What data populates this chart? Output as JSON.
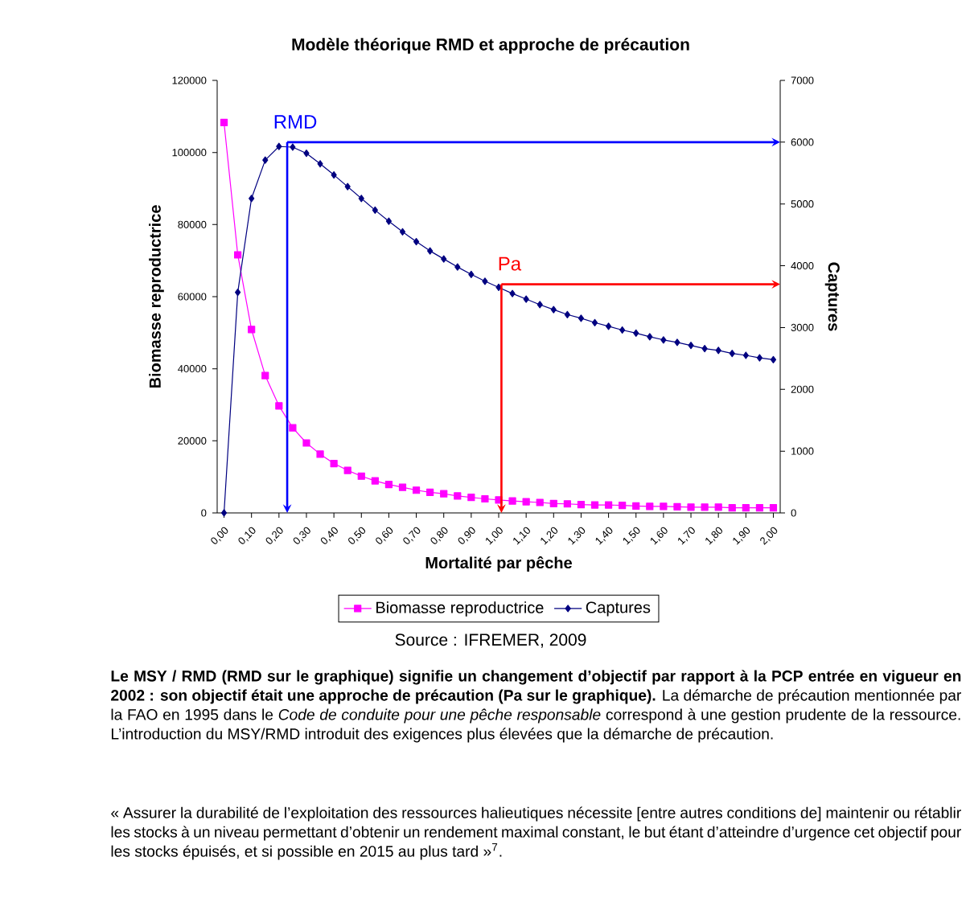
{
  "chart_data": {
    "type": "line",
    "title": "Modèle théorique RMD et approche de précaution",
    "xlabel": "Mortalité par pêche",
    "ylabel": "Biomasse reproductrice",
    "y2label": "Captures",
    "x": [
      0,
      0.05,
      0.1,
      0.15,
      0.2,
      0.25,
      0.3,
      0.35,
      0.4,
      0.45,
      0.5,
      0.55,
      0.6,
      0.65,
      0.7,
      0.75,
      0.8,
      0.85,
      0.9,
      0.95,
      1.0,
      1.05,
      1.1,
      1.15,
      1.2,
      1.25,
      1.3,
      1.35,
      1.4,
      1.45,
      1.5,
      1.55,
      1.6,
      1.65,
      1.7,
      1.75,
      1.8,
      1.85,
      1.9,
      1.95,
      2.0
    ],
    "series": [
      {
        "name": "Biomasse reproductrice",
        "color": "#ff00ff",
        "marker": "square",
        "values": [
          108300,
          71600,
          50900,
          38100,
          29700,
          23600,
          19400,
          16300,
          13700,
          11800,
          10200,
          8900,
          7900,
          7100,
          6300,
          5700,
          5300,
          4700,
          4300,
          3900,
          3600,
          3300,
          3100,
          2900,
          2600,
          2500,
          2300,
          2200,
          2200,
          2100,
          1900,
          1800,
          1800,
          1700,
          1600,
          1600,
          1600,
          1400,
          1400,
          1400,
          1400
        ]
      },
      {
        "name": "Captures",
        "color": "#000080",
        "marker": "diamond",
        "axis": "y2",
        "values": [
          0,
          3570,
          5090,
          5710,
          5930,
          5920,
          5820,
          5650,
          5470,
          5280,
          5090,
          4900,
          4720,
          4550,
          4390,
          4240,
          4110,
          3980,
          3860,
          3750,
          3650,
          3550,
          3460,
          3370,
          3290,
          3210,
          3150,
          3080,
          3020,
          2960,
          2910,
          2850,
          2800,
          2760,
          2710,
          2660,
          2630,
          2580,
          2550,
          2510,
          2480
        ]
      }
    ],
    "xlim": [
      -0.025,
      2.025
    ],
    "xticks": [
      {
        "value": 0,
        "label": "0,00"
      },
      {
        "value": 0.1,
        "label": "0,10"
      },
      {
        "value": 0.2,
        "label": "0,20"
      },
      {
        "value": 0.3,
        "label": "0,30"
      },
      {
        "value": 0.4,
        "label": "0,40"
      },
      {
        "value": 0.5,
        "label": "0,50"
      },
      {
        "value": 0.6,
        "label": "0,60"
      },
      {
        "value": 0.7,
        "label": "0,70"
      },
      {
        "value": 0.8,
        "label": "0,80"
      },
      {
        "value": 0.9,
        "label": "0,90"
      },
      {
        "value": 1.0,
        "label": "1,00"
      },
      {
        "value": 1.1,
        "label": "1,10"
      },
      {
        "value": 1.2,
        "label": "1,20"
      },
      {
        "value": 1.3,
        "label": "1,30"
      },
      {
        "value": 1.4,
        "label": "1,40"
      },
      {
        "value": 1.5,
        "label": "1,50"
      },
      {
        "value": 1.6,
        "label": "1,60"
      },
      {
        "value": 1.7,
        "label": "1,70"
      },
      {
        "value": 1.8,
        "label": "1,80"
      },
      {
        "value": 1.9,
        "label": "1,90"
      },
      {
        "value": 2.0,
        "label": "2,00"
      }
    ],
    "ylim": [
      0,
      120000
    ],
    "yticks": [
      0,
      20000,
      40000,
      60000,
      80000,
      100000,
      120000
    ],
    "y2lim": [
      0,
      7000
    ],
    "y2ticks": [
      0,
      1000,
      2000,
      3000,
      4000,
      5000,
      6000,
      7000
    ],
    "ref_lines": [
      {
        "axis": "x",
        "value": 0.23,
        "label": "RMD",
        "color": "#0000ff"
      },
      {
        "axis": "y2",
        "value": 6000,
        "color": "#0000ff"
      },
      {
        "axis": "x",
        "value": 1.01,
        "label": "Pa",
        "color": "#ff0000"
      },
      {
        "axis": "y2",
        "value": 3700,
        "color": "#ff0000"
      }
    ],
    "legend": "bottom",
    "line_style": "solid",
    "grid": false,
    "annotations": [
      "Source : IFREMER, 2009",
      "**Le MSY / RMD (RMD sur le graphique) signifie un changement d’objectif par rapport à la PCP entrée en vigueur en 2002 : son objectif était une approche de précaution (Pa sur le graphique).** La démarche de précaution mentionnée par la FAO en 1995 dans le *Code de conduite pour une pêche responsable* correspond à une gestion prudente de la ressource. L’introduction du MSY/RMD introduit des exigences plus élevées que la démarche de précaution.",
      "« Assurer la durabilité de l’exploitation des ressources halieutiques nécessite [entre autres conditions de] maintenir ou rétablir les stocks à un niveau permettant d’obtenir un rendement maximal constant, le but étant d’atteindre d’urgence cet objectif pour les stocks épuisés, et si possible en 2015 au plus tard »$^{7}$."
    ]
  }
}
